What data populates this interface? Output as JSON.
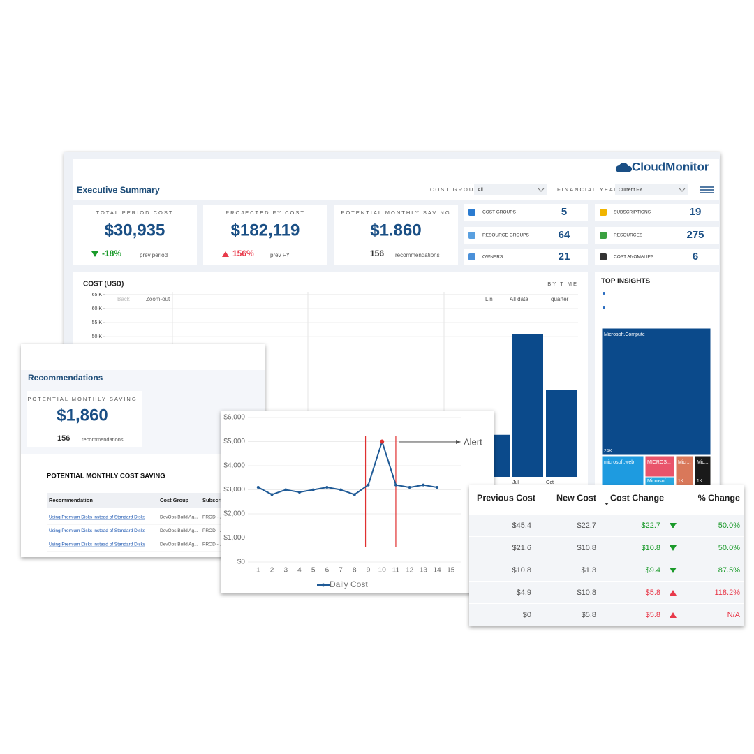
{
  "logo": "CloudMonitor",
  "header": {
    "title": "Executive Summary",
    "filters": [
      {
        "label": "COST GROUP",
        "value": "All"
      },
      {
        "label": "FINANCIAL YEAR",
        "value": "Current FY"
      }
    ]
  },
  "kpis": [
    {
      "label": "TOTAL PERIOD COST",
      "value": "$30,935",
      "change": "-18%",
      "direction": "down",
      "note": "prev period"
    },
    {
      "label": "PROJECTED FY COST",
      "value": "$182,119",
      "change": "156%",
      "direction": "up",
      "note": "prev FY"
    },
    {
      "label": "POTENTIAL MONTHLY SAVING",
      "value": "$1.860",
      "count": 156,
      "note": "recommendations"
    }
  ],
  "counts": [
    {
      "label": "COST GROUPS",
      "value": 5
    },
    {
      "label": "SUBSCRIPTIONS",
      "value": 19
    },
    {
      "label": "RESOURCE GROUPS",
      "value": 64
    },
    {
      "label": "RESOURCES",
      "value": 275
    },
    {
      "label": "OWNERS",
      "value": 21
    },
    {
      "label": "COST ANOMALIES",
      "value": 6
    }
  ],
  "cost_panel": {
    "by": "BY TIME",
    "toolbar": [
      "Back",
      "Zoom-out",
      "Lin",
      "All data",
      "quarter"
    ]
  },
  "insights": {
    "title": "TOP INSIGHTS",
    "treemap": [
      {
        "label": "Microsoft.Compute",
        "value": "24K"
      },
      {
        "label": "microsoft.web"
      },
      {
        "label": "MICROS..."
      },
      {
        "label": "Microsof..."
      },
      {
        "label": "Micr...",
        "value": "1K"
      },
      {
        "label": "Mic...",
        "value": "1K"
      }
    ]
  },
  "recommendations": {
    "title": "Recommendations",
    "kpi": {
      "label": "POTENTIAL MONTHLY SAVING",
      "value": "$1,860",
      "count": 156,
      "note": "recommendations"
    },
    "table": {
      "title": "POTENTIAL MONTHLY COST SAVING",
      "columns": [
        "Recommendation",
        "Cost Group",
        "Subscription"
      ],
      "rows": [
        [
          "Using Premium Disks instead of Standard Disks",
          "DevOps Build Ag...",
          "PROD - ..."
        ],
        [
          "Using Premium Disks instead of Standard Disks",
          "DevOps Build Ag...",
          "PROD - ..."
        ],
        [
          "Using Premium Disks instead of Standard Disks",
          "DevOps Build Ag...",
          "PROD - ..."
        ]
      ]
    }
  },
  "changes": {
    "columns": [
      "Previous Cost",
      "New Cost",
      "Cost Change",
      "% Change"
    ],
    "rows": [
      {
        "previous": "$45.4",
        "new": "$22.7",
        "change": "$22.7",
        "direction": "down",
        "percent": "50.0%"
      },
      {
        "previous": "$21.6",
        "new": "$10.8",
        "change": "$10.8",
        "direction": "down",
        "percent": "50.0%"
      },
      {
        "previous": "$10.8",
        "new": "$1.3",
        "change": "$9.4",
        "direction": "down",
        "percent": "87.5%"
      },
      {
        "previous": "$4.9",
        "new": "$10.8",
        "change": "$5.8",
        "direction": "up",
        "percent": "118.2%"
      },
      {
        "previous": "$0",
        "new": "$5.8",
        "change": "$5.8",
        "direction": "up",
        "percent": "N/A"
      }
    ]
  },
  "chart_data": [
    {
      "type": "bar",
      "title": "COST (USD)",
      "categories": [
        null,
        "Jul",
        "Oct"
      ],
      "values": [
        15000,
        51000,
        31000
      ],
      "color": "#0b4a8b",
      "ylim": [
        0,
        65000
      ],
      "yticks": [
        {
          "value": 50000,
          "label": "50 K"
        },
        {
          "value": 55000,
          "label": "55 K"
        },
        {
          "value": 60000,
          "label": "60 K"
        },
        {
          "value": 65000,
          "label": "65 K"
        }
      ],
      "grid": true
    },
    {
      "type": "line",
      "x": [
        1,
        2,
        3,
        4,
        5,
        6,
        7,
        8,
        9,
        10,
        11,
        12,
        13,
        14
      ],
      "series": [
        {
          "name": "Daily Cost",
          "color": "#1f5a96",
          "values": [
            3100,
            2800,
            3000,
            2900,
            3000,
            3100,
            3000,
            2800,
            3200,
            5000,
            3200,
            3100,
            3200,
            3100
          ]
        }
      ],
      "highlight_color": "#e03030",
      "alert_lines": [
        8.8,
        11
      ],
      "annotation": "Alert",
      "xlim": [
        0.25,
        15.75
      ],
      "xticks": [
        1,
        2,
        3,
        4,
        5,
        6,
        7,
        8,
        9,
        10,
        11,
        12,
        13,
        14,
        15
      ],
      "ylim": [
        0,
        6000
      ],
      "yticks": [
        {
          "value": 0,
          "label": "$0"
        },
        {
          "value": 1000,
          "label": "$1,000"
        },
        {
          "value": 2000,
          "label": "$2,000"
        },
        {
          "value": 3000,
          "label": "$3,000"
        },
        {
          "value": 4000,
          "label": "$4,000"
        },
        {
          "value": 5000,
          "label": "$5,000"
        },
        {
          "value": 6000,
          "label": "$6,000"
        }
      ],
      "grid": true
    }
  ]
}
